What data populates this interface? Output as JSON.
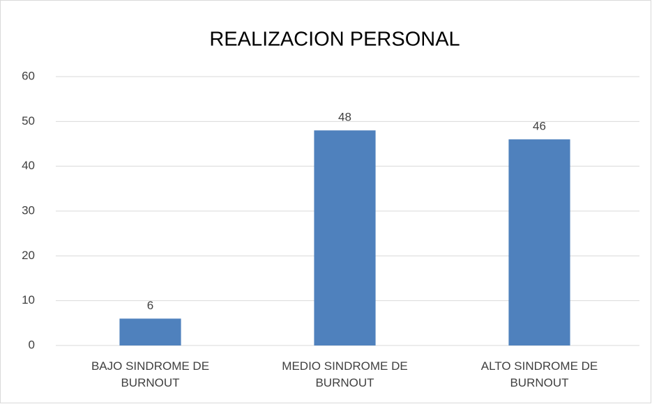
{
  "chart_data": {
    "type": "bar",
    "title": "REALIZACION PERSONAL",
    "categories": [
      "BAJO SINDROME DE BURNOUT",
      "MEDIO SINDROME DE BURNOUT",
      "ALTO SINDROME DE BURNOUT"
    ],
    "values": [
      6,
      48,
      46
    ],
    "color": "#4f81bd",
    "ylim": [
      0,
      60
    ],
    "yticks": [
      0,
      10,
      20,
      30,
      40,
      50,
      60
    ],
    "grid": true
  }
}
